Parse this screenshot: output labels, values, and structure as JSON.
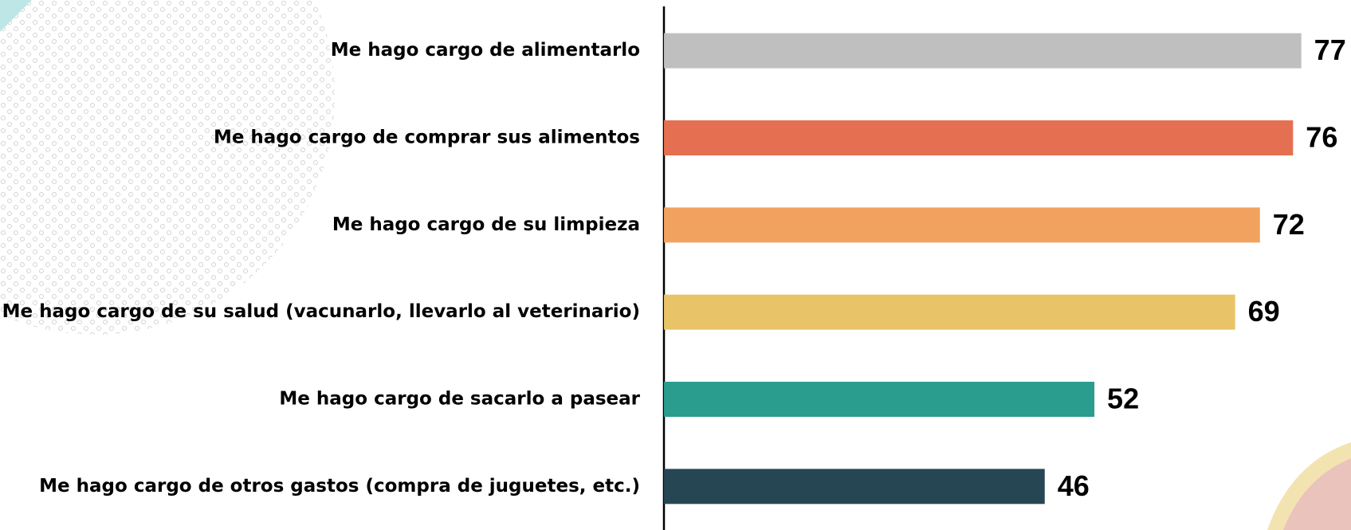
{
  "chart_data": {
    "type": "bar",
    "orientation": "horizontal",
    "categories": [
      "Me hago cargo de alimentarlo",
      "Me hago cargo de comprar sus alimentos",
      "Me hago cargo de su limpieza",
      "Me hago cargo de su salud (vacunarlo, llevarlo al veterinario)",
      "Me hago cargo de sacarlo a pasear",
      "Me hago cargo de otros gastos (compra de juguetes, etc.)"
    ],
    "values": [
      77,
      76,
      72,
      69,
      52,
      46
    ],
    "colors": [
      "#bfbfbf",
      "#e46f51",
      "#f2a25f",
      "#e8c367",
      "#2a9d8e",
      "#264653"
    ],
    "xlim": [
      0,
      83
    ]
  }
}
